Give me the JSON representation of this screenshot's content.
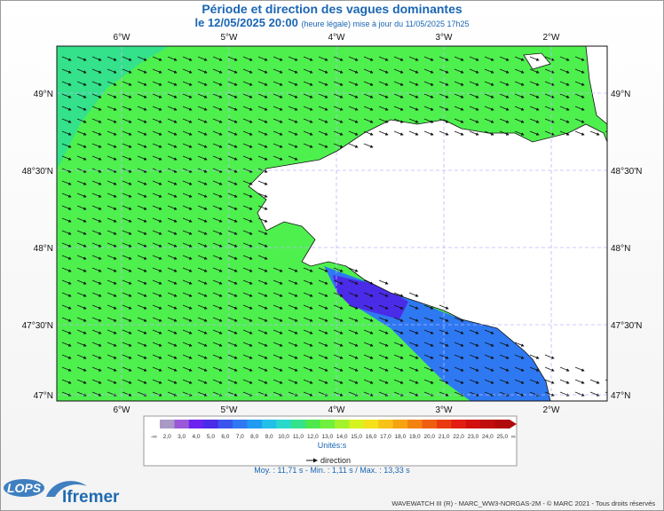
{
  "title": "Période et direction des vagues dominantes",
  "subtitle_date": "le 12/05/2025 20:00",
  "subtitle_note": "(heure légale) mise à jour du 11/05/2025 17h25",
  "lon_labels": [
    "6°W",
    "5°W",
    "4°W",
    "3°W",
    "2°W"
  ],
  "lat_labels": [
    "49°N",
    "48°30'N",
    "48°N",
    "47°30'N",
    "47°N"
  ],
  "scale": {
    "left_end": "-∞",
    "right_end": "∞",
    "ticks": [
      "2,0",
      "3,0",
      "4,0",
      "5,0",
      "6,0",
      "7,0",
      "8,0",
      "9,0",
      "10,0",
      "11,0",
      "12,0",
      "13,0",
      "14,0",
      "15,0",
      "16,0",
      "17,0",
      "18,0",
      "19,0",
      "20,0",
      "21,0",
      "22,0",
      "23,0",
      "24,0",
      "25,0"
    ],
    "colors": [
      "#a999c7",
      "#9b59d9",
      "#6a22f0",
      "#4a2be8",
      "#3a55ee",
      "#2e79f2",
      "#1f9bf2",
      "#22bfe8",
      "#2ad8cc",
      "#33e28a",
      "#4ee84c",
      "#6ff03c",
      "#a4f22c",
      "#d8f21f",
      "#f4e11a",
      "#f6c316",
      "#f6a312",
      "#f38210",
      "#ef5e10",
      "#ea3b10",
      "#e21e12",
      "#d21010",
      "#c00c0c",
      "#b00a0a"
    ],
    "unit": "Unités:s"
  },
  "direction_label": "direction",
  "stats": "Moy. : 11,71 s  -  Min. : 1,11 s / Max. : 13,33 s",
  "credit": "WAVEWATCH III (R) - MARC_WW3-NORGAS-2M - © MARC 2021 - Tous droits réservés",
  "logos": {
    "lops": "LOPS",
    "ifremer": "Ifremer"
  },
  "colors": {
    "dominant_period": "#4ef04e",
    "short_period": "#2a3fe8",
    "land": "#ffffff",
    "grid": "#b8b8ff"
  }
}
